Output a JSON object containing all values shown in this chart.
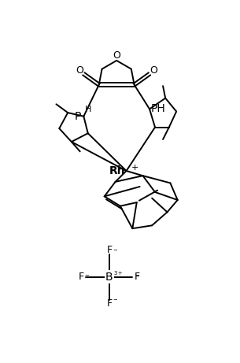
{
  "background_color": "#ffffff",
  "line_color": "#000000",
  "line_width": 1.4,
  "fig_width": 3.05,
  "fig_height": 4.61,
  "dpi": 100,
  "xlim": [
    0,
    305
  ],
  "ylim": [
    0,
    461
  ]
}
